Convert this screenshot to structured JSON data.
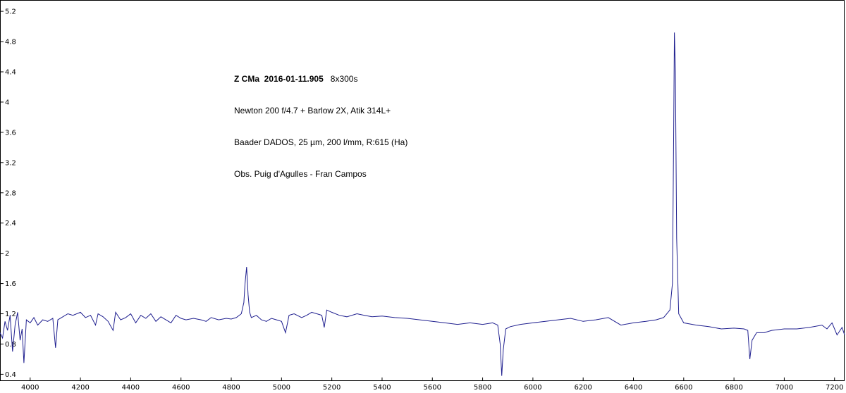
{
  "chart_data": {
    "type": "line",
    "annotation": {
      "object": "Z CMa",
      "date": "2016-01-11.905",
      "exposure": "8x300s",
      "lines": [
        "Newton 200 f/4.7 + Barlow 2X, Atik 314L+",
        "Baader DADOS, 25 µm, 200 l/mm, R:615 (Ha)",
        "Obs. Puig d'Agulles - Fran Campos"
      ]
    },
    "xlim": [
      3880,
      7240
    ],
    "ylim": [
      0.32,
      5.35
    ],
    "x_ticks": [
      4000,
      4200,
      4400,
      4600,
      4800,
      5000,
      5200,
      5400,
      5600,
      5800,
      6000,
      6200,
      6400,
      6600,
      6800,
      7000,
      7200
    ],
    "y_ticks": [
      0.4,
      0.8,
      1.2,
      1.6,
      2,
      2.4,
      2.8,
      3.2,
      3.6,
      4,
      4.4,
      4.8,
      5.2
    ],
    "grid": false,
    "line_color": "#1f1f8f",
    "series": [
      {
        "x": [
          3880,
          3890,
          3900,
          3910,
          3920,
          3930,
          3940,
          3950,
          3960,
          3968,
          3975,
          3985,
          4000,
          4015,
          4030,
          4050,
          4070,
          4090,
          4101,
          4110,
          4130,
          4150,
          4170,
          4200,
          4220,
          4240,
          4260,
          4270,
          4290,
          4310,
          4330,
          4340,
          4360,
          4380,
          4400,
          4420,
          4440,
          4460,
          4480,
          4500,
          4520,
          4540,
          4560,
          4580,
          4600,
          4620,
          4650,
          4680,
          4700,
          4720,
          4750,
          4780,
          4800,
          4820,
          4840,
          4850,
          4855,
          4861,
          4867,
          4873,
          4880,
          4900,
          4920,
          4940,
          4960,
          4980,
          5000,
          5016,
          5030,
          5050,
          5080,
          5100,
          5120,
          5140,
          5160,
          5170,
          5180,
          5200,
          5230,
          5260,
          5300,
          5330,
          5360,
          5400,
          5450,
          5500,
          5550,
          5600,
          5650,
          5700,
          5750,
          5800,
          5840,
          5860,
          5870,
          5876,
          5882,
          5892,
          5910,
          5950,
          6000,
          6050,
          6100,
          6150,
          6200,
          6250,
          6300,
          6350,
          6400,
          6450,
          6490,
          6520,
          6545,
          6555,
          6560,
          6563,
          6567,
          6572,
          6580,
          6600,
          6650,
          6700,
          6750,
          6800,
          6840,
          6855,
          6863,
          6872,
          6890,
          6920,
          6950,
          7000,
          7050,
          7100,
          7150,
          7170,
          7190,
          7210,
          7230,
          7240
        ],
        "values": [
          0.95,
          0.88,
          1.1,
          0.98,
          1.18,
          0.7,
          1.05,
          1.22,
          0.85,
          1.0,
          0.55,
          1.12,
          1.08,
          1.15,
          1.05,
          1.12,
          1.1,
          1.14,
          0.75,
          1.12,
          1.16,
          1.2,
          1.18,
          1.22,
          1.15,
          1.18,
          1.05,
          1.2,
          1.16,
          1.1,
          0.98,
          1.22,
          1.12,
          1.15,
          1.2,
          1.08,
          1.18,
          1.14,
          1.2,
          1.1,
          1.16,
          1.12,
          1.08,
          1.18,
          1.14,
          1.12,
          1.14,
          1.12,
          1.1,
          1.15,
          1.12,
          1.14,
          1.13,
          1.15,
          1.2,
          1.35,
          1.6,
          1.82,
          1.45,
          1.22,
          1.15,
          1.18,
          1.12,
          1.1,
          1.14,
          1.12,
          1.1,
          0.95,
          1.18,
          1.2,
          1.15,
          1.18,
          1.22,
          1.2,
          1.18,
          1.02,
          1.25,
          1.22,
          1.18,
          1.16,
          1.2,
          1.18,
          1.16,
          1.17,
          1.15,
          1.14,
          1.12,
          1.1,
          1.08,
          1.06,
          1.08,
          1.06,
          1.08,
          1.05,
          0.8,
          0.38,
          0.72,
          1.0,
          1.03,
          1.06,
          1.08,
          1.1,
          1.12,
          1.14,
          1.1,
          1.12,
          1.15,
          1.05,
          1.08,
          1.1,
          1.12,
          1.15,
          1.25,
          1.6,
          3.5,
          4.92,
          4.4,
          2.2,
          1.2,
          1.08,
          1.05,
          1.03,
          1.0,
          1.01,
          1.0,
          0.98,
          0.6,
          0.85,
          0.95,
          0.95,
          0.98,
          1.0,
          1.0,
          1.02,
          1.05,
          1.0,
          1.08,
          0.92,
          1.02,
          0.92
        ]
      }
    ]
  }
}
